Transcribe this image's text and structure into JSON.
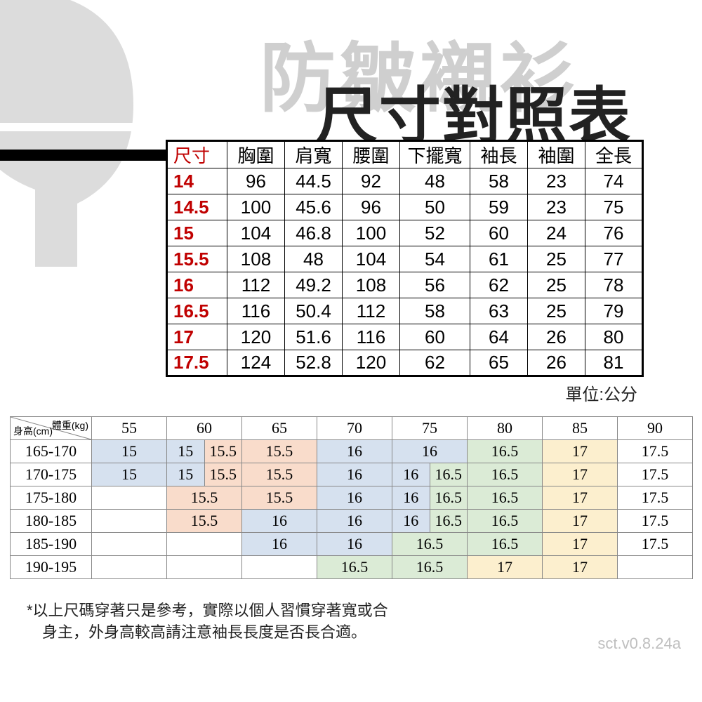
{
  "faded_bg_text": "防皺襯衫",
  "main_title": "尺寸對照表",
  "unit_label": "單位:公分",
  "footnote": "*以上尺碼穿著只是參考，實際以個人習慣穿著寬或合\n　身主，外身高較高請注意袖長長度是否長合適。",
  "version": "sct.v0.8.24a",
  "size_table": {
    "columns": [
      "尺寸",
      "胸圍",
      "肩寬",
      "腰圍",
      "下擺寬",
      "袖長",
      "袖圍",
      "全長"
    ],
    "rows": [
      [
        "14",
        "96",
        "44.5",
        "92",
        "48",
        "58",
        "23",
        "74"
      ],
      [
        "14.5",
        "100",
        "45.6",
        "96",
        "50",
        "59",
        "23",
        "75"
      ],
      [
        "15",
        "104",
        "46.8",
        "100",
        "52",
        "60",
        "24",
        "76"
      ],
      [
        "15.5",
        "108",
        "48",
        "104",
        "54",
        "61",
        "25",
        "77"
      ],
      [
        "16",
        "112",
        "49.2",
        "108",
        "56",
        "62",
        "25",
        "78"
      ],
      [
        "16.5",
        "116",
        "50.4",
        "112",
        "58",
        "63",
        "25",
        "79"
      ],
      [
        "17",
        "120",
        "51.6",
        "116",
        "60",
        "64",
        "26",
        "80"
      ],
      [
        "17.5",
        "124",
        "52.8",
        "120",
        "62",
        "65",
        "26",
        "81"
      ]
    ],
    "header_color": "#c00000",
    "size_col_color": "#c00000",
    "border_color": "#000000",
    "font_size": 26
  },
  "rec_table": {
    "diag_top": "體重(kg)",
    "diag_bottom": "身高(cm)",
    "weight_headers": [
      "55",
      "60",
      "65",
      "70",
      "75",
      "80",
      "85",
      "90"
    ],
    "height_rows": [
      "165-170",
      "170-175",
      "175-180",
      "180-185",
      "185-190",
      "190-195"
    ],
    "colors": {
      "blue": "#d6e1ef",
      "peach": "#f9dccb",
      "green": "#dbebd6",
      "yellow": "#fcefce",
      "white": "#ffffff"
    },
    "cells_structure_note": "cells[row][col] -> {v, c, split?} ; split means column shown as two half-cells",
    "cells": [
      [
        {
          "v": "15",
          "c": "blue"
        },
        {
          "split": [
            {
              "v": "15",
              "c": "blue"
            },
            {
              "v": "15.5",
              "c": "peach"
            }
          ]
        },
        {
          "v": "15.5",
          "c": "peach"
        },
        {
          "v": "16",
          "c": "blue"
        },
        {
          "v": "16",
          "c": "blue"
        },
        {
          "v": "16.5",
          "c": "green"
        },
        {
          "v": "17",
          "c": "yellow"
        },
        {
          "v": "17.5",
          "c": "white"
        }
      ],
      [
        {
          "v": "15",
          "c": "blue"
        },
        {
          "split": [
            {
              "v": "15",
              "c": "blue"
            },
            {
              "v": "15.5",
              "c": "peach"
            }
          ]
        },
        {
          "v": "15.5",
          "c": "peach"
        },
        {
          "v": "16",
          "c": "blue"
        },
        {
          "split": [
            {
              "v": "16",
              "c": "blue"
            },
            {
              "v": "16.5",
              "c": "green"
            }
          ]
        },
        {
          "v": "16.5",
          "c": "green"
        },
        {
          "v": "17",
          "c": "yellow"
        },
        {
          "v": "17.5",
          "c": "white"
        }
      ],
      [
        {
          "v": "",
          "c": "white"
        },
        {
          "v": "15.5",
          "c": "peach"
        },
        {
          "v": "15.5",
          "c": "peach"
        },
        {
          "v": "16",
          "c": "blue"
        },
        {
          "split": [
            {
              "v": "16",
              "c": "blue"
            },
            {
              "v": "16.5",
              "c": "green"
            }
          ]
        },
        {
          "v": "16.5",
          "c": "green"
        },
        {
          "v": "17",
          "c": "yellow"
        },
        {
          "v": "17.5",
          "c": "white"
        }
      ],
      [
        {
          "v": "",
          "c": "white"
        },
        {
          "v": "15.5",
          "c": "peach"
        },
        {
          "v": "16",
          "c": "blue"
        },
        {
          "v": "16",
          "c": "blue"
        },
        {
          "split": [
            {
              "v": "16",
              "c": "blue"
            },
            {
              "v": "16.5",
              "c": "green"
            }
          ]
        },
        {
          "v": "16.5",
          "c": "green"
        },
        {
          "v": "17",
          "c": "yellow"
        },
        {
          "v": "17.5",
          "c": "white"
        }
      ],
      [
        {
          "v": "",
          "c": "white"
        },
        {
          "v": "",
          "c": "white"
        },
        {
          "v": "16",
          "c": "blue"
        },
        {
          "v": "16",
          "c": "blue"
        },
        {
          "v": "16.5",
          "c": "green"
        },
        {
          "v": "16.5",
          "c": "green"
        },
        {
          "v": "17",
          "c": "yellow"
        },
        {
          "v": "17.5",
          "c": "white"
        }
      ],
      [
        {
          "v": "",
          "c": "white"
        },
        {
          "v": "",
          "c": "white"
        },
        {
          "v": "",
          "c": "white"
        },
        {
          "v": "16.5",
          "c": "green"
        },
        {
          "v": "16.5",
          "c": "green"
        },
        {
          "v": "17",
          "c": "yellow"
        },
        {
          "v": "17",
          "c": "yellow"
        },
        {
          "v": "",
          "c": "white"
        }
      ]
    ],
    "font_size": 22,
    "border_color": "#888888"
  }
}
